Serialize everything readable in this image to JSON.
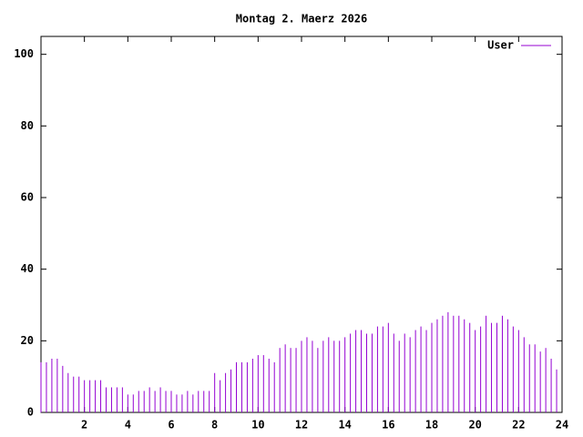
{
  "chart_data": {
    "type": "impulse",
    "title": "Montag 2. Maerz 2026",
    "x": [
      0,
      0.25,
      0.5,
      0.75,
      1,
      1.25,
      1.5,
      1.75,
      2,
      2.25,
      2.5,
      2.75,
      3,
      3.25,
      3.5,
      3.75,
      4,
      4.25,
      4.5,
      4.75,
      5,
      5.25,
      5.5,
      5.75,
      6,
      6.25,
      6.5,
      6.75,
      7,
      7.25,
      7.5,
      7.75,
      8,
      8.25,
      8.5,
      8.75,
      9,
      9.25,
      9.5,
      9.75,
      10,
      10.25,
      10.5,
      10.75,
      11,
      11.25,
      11.5,
      11.75,
      12,
      12.25,
      12.5,
      12.75,
      13,
      13.25,
      13.5,
      13.75,
      14,
      14.25,
      14.5,
      14.75,
      15,
      15.25,
      15.5,
      15.75,
      16,
      16.25,
      16.5,
      16.75,
      17,
      17.25,
      17.5,
      17.75,
      18,
      18.25,
      18.5,
      18.75,
      19,
      19.25,
      19.5,
      19.75,
      20,
      20.25,
      20.5,
      20.75,
      21,
      21.25,
      21.5,
      21.75,
      22,
      22.25,
      22.5,
      22.75,
      23,
      23.25,
      23.5,
      23.75
    ],
    "series": [
      {
        "name": "User",
        "color": "#9400d3",
        "values": [
          14,
          14,
          15,
          15,
          13,
          11,
          10,
          10,
          9,
          9,
          9,
          9,
          7,
          7,
          7,
          7,
          5,
          5,
          6,
          6,
          7,
          6,
          7,
          6,
          6,
          5,
          5,
          6,
          5,
          6,
          6,
          6,
          11,
          9,
          11,
          12,
          14,
          14,
          14,
          15,
          16,
          16,
          15,
          14,
          18,
          19,
          18,
          18,
          20,
          21,
          20,
          18,
          20,
          21,
          20,
          20,
          21,
          22,
          23,
          23,
          22,
          22,
          24,
          24,
          25,
          22,
          20,
          22,
          21,
          23,
          24,
          23,
          25,
          26,
          27,
          28,
          27,
          27,
          26,
          25,
          23,
          24,
          27,
          25,
          25,
          27,
          26,
          24,
          23,
          21,
          19,
          19,
          17,
          18,
          15,
          12
        ]
      }
    ],
    "xlim": [
      0,
      24
    ],
    "xticks": [
      2,
      4,
      6,
      8,
      10,
      12,
      14,
      16,
      18,
      20,
      22,
      24
    ],
    "ylim": [
      0,
      105
    ],
    "yticks": [
      0,
      20,
      40,
      60,
      80,
      100
    ],
    "legend": "top-right"
  }
}
